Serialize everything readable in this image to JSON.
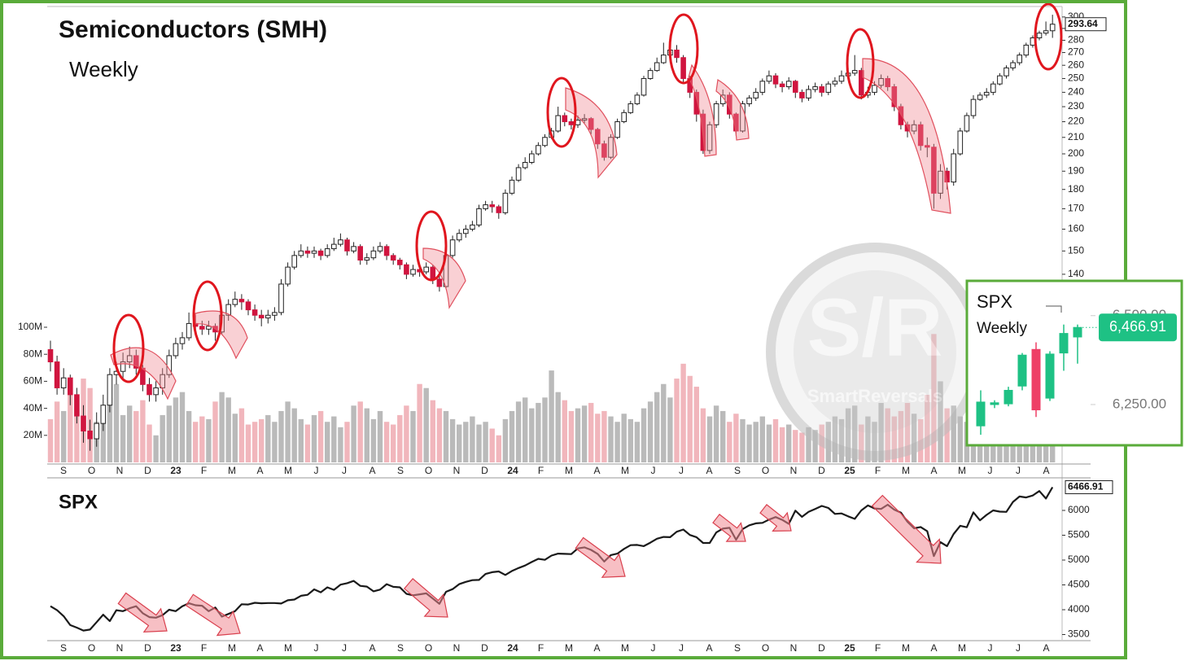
{
  "chart_data": [
    {
      "type": "candlestick",
      "title": "Semiconductors (SMH)",
      "subtitle": "Weekly",
      "log": true,
      "up_color": "#ffffff",
      "down_color": "#d0153f",
      "outline_color": "#222222",
      "ylim": [
        80,
        305
      ],
      "yticks": [
        140,
        150,
        160,
        170,
        180,
        190,
        200,
        210,
        220,
        230,
        240,
        250,
        260,
        270,
        280,
        290,
        300
      ],
      "ohlc": [
        [
          112,
          115,
          105,
          108
        ],
        [
          108,
          110,
          98,
          100
        ],
        [
          100,
          106,
          98,
          103
        ],
        [
          103,
          104,
          95,
          98
        ],
        [
          98,
          100,
          90,
          92
        ],
        [
          92,
          95,
          85,
          88
        ],
        [
          88,
          91,
          83,
          86
        ],
        [
          86,
          93,
          84,
          90
        ],
        [
          90,
          98,
          88,
          95
        ],
        [
          95,
          106,
          93,
          104
        ],
        [
          104,
          108,
          101,
          105
        ],
        [
          105,
          111,
          103,
          108
        ],
        [
          108,
          113,
          106,
          110
        ],
        [
          110,
          112,
          104,
          106
        ],
        [
          106,
          107,
          99,
          101
        ],
        [
          101,
          103,
          96,
          98
        ],
        [
          98,
          102,
          96,
          100
        ],
        [
          100,
          106,
          98,
          104
        ],
        [
          104,
          112,
          103,
          110
        ],
        [
          110,
          116,
          109,
          114
        ],
        [
          114,
          118,
          112,
          116
        ],
        [
          116,
          125,
          115,
          121
        ],
        [
          121,
          124,
          118,
          120
        ],
        [
          120,
          122,
          117,
          119
        ],
        [
          119,
          122,
          117,
          120
        ],
        [
          120,
          121,
          115,
          118
        ],
        [
          118,
          126,
          117,
          124
        ],
        [
          124,
          130,
          122,
          128
        ],
        [
          128,
          133,
          127,
          130
        ],
        [
          130,
          132,
          126,
          129
        ],
        [
          129,
          130,
          124,
          126
        ],
        [
          126,
          128,
          122,
          124
        ],
        [
          124,
          126,
          120,
          123
        ],
        [
          123,
          126,
          121,
          124
        ],
        [
          124,
          127,
          122,
          125
        ],
        [
          125,
          138,
          124,
          136
        ],
        [
          136,
          145,
          135,
          143
        ],
        [
          143,
          150,
          142,
          148
        ],
        [
          148,
          153,
          147,
          150
        ],
        [
          150,
          152,
          147,
          149
        ],
        [
          149,
          152,
          147,
          150
        ],
        [
          150,
          151,
          146,
          148
        ],
        [
          148,
          153,
          147,
          151
        ],
        [
          151,
          156,
          150,
          153
        ],
        [
          153,
          158,
          152,
          155
        ],
        [
          155,
          156,
          148,
          150
        ],
        [
          150,
          154,
          149,
          152
        ],
        [
          152,
          153,
          144,
          146
        ],
        [
          146,
          149,
          144,
          147
        ],
        [
          147,
          152,
          146,
          150
        ],
        [
          150,
          154,
          149,
          152
        ],
        [
          152,
          153,
          146,
          148
        ],
        [
          148,
          149,
          144,
          146
        ],
        [
          146,
          147,
          142,
          144
        ],
        [
          144,
          145,
          138,
          140
        ],
        [
          140,
          144,
          139,
          142
        ],
        [
          142,
          144,
          139,
          141
        ],
        [
          141,
          145,
          140,
          143
        ],
        [
          143,
          144,
          136,
          138
        ],
        [
          138,
          140,
          133,
          135
        ],
        [
          135,
          149,
          134,
          148
        ],
        [
          148,
          157,
          147,
          155
        ],
        [
          155,
          160,
          154,
          158
        ],
        [
          158,
          162,
          156,
          160
        ],
        [
          160,
          164,
          159,
          162
        ],
        [
          162,
          172,
          161,
          170
        ],
        [
          170,
          174,
          169,
          172
        ],
        [
          172,
          174,
          168,
          171
        ],
        [
          171,
          172,
          165,
          168
        ],
        [
          168,
          180,
          167,
          178
        ],
        [
          178,
          187,
          177,
          185
        ],
        [
          185,
          194,
          184,
          192
        ],
        [
          192,
          198,
          191,
          195
        ],
        [
          195,
          202,
          194,
          200
        ],
        [
          200,
          207,
          199,
          205
        ],
        [
          205,
          212,
          204,
          210
        ],
        [
          210,
          216,
          209,
          214
        ],
        [
          214,
          230,
          213,
          224
        ],
        [
          224,
          226,
          217,
          220
        ],
        [
          220,
          222,
          215,
          218
        ],
        [
          218,
          224,
          216,
          221
        ],
        [
          221,
          225,
          219,
          222
        ],
        [
          222,
          223,
          212,
          215
        ],
        [
          215,
          216,
          203,
          206
        ],
        [
          206,
          208,
          196,
          198
        ],
        [
          198,
          212,
          197,
          210
        ],
        [
          210,
          222,
          209,
          220
        ],
        [
          220,
          228,
          219,
          226
        ],
        [
          226,
          234,
          225,
          232
        ],
        [
          232,
          240,
          231,
          238
        ],
        [
          238,
          252,
          237,
          250
        ],
        [
          250,
          258,
          249,
          256
        ],
        [
          256,
          266,
          255,
          262
        ],
        [
          262,
          278,
          261,
          268
        ],
        [
          268,
          280,
          266,
          272
        ],
        [
          272,
          276,
          262,
          266
        ],
        [
          266,
          268,
          246,
          250
        ],
        [
          250,
          252,
          236,
          240
        ],
        [
          240,
          242,
          220,
          225
        ],
        [
          225,
          228,
          200,
          202
        ],
        [
          202,
          220,
          200,
          218
        ],
        [
          218,
          234,
          216,
          232
        ],
        [
          232,
          242,
          230,
          238
        ],
        [
          238,
          240,
          222,
          225
        ],
        [
          225,
          226,
          211,
          214
        ],
        [
          214,
          234,
          213,
          232
        ],
        [
          232,
          238,
          230,
          236
        ],
        [
          236,
          243,
          234,
          240
        ],
        [
          240,
          250,
          238,
          248
        ],
        [
          248,
          256,
          246,
          252
        ],
        [
          252,
          254,
          243,
          246
        ],
        [
          246,
          248,
          240,
          244
        ],
        [
          244,
          251,
          242,
          248
        ],
        [
          248,
          249,
          236,
          240
        ],
        [
          240,
          242,
          233,
          236
        ],
        [
          236,
          245,
          234,
          242
        ],
        [
          242,
          247,
          240,
          244
        ],
        [
          244,
          246,
          237,
          240
        ],
        [
          240,
          248,
          238,
          246
        ],
        [
          246,
          251,
          244,
          248
        ],
        [
          248,
          256,
          246,
          252
        ],
        [
          252,
          258,
          250,
          254
        ],
        [
          254,
          268,
          252,
          256
        ],
        [
          256,
          258,
          235,
          238
        ],
        [
          238,
          244,
          236,
          240
        ],
        [
          240,
          248,
          238,
          245
        ],
        [
          245,
          253,
          243,
          250
        ],
        [
          250,
          252,
          241,
          244
        ],
        [
          244,
          246,
          227,
          230
        ],
        [
          230,
          232,
          215,
          218
        ],
        [
          218,
          220,
          210,
          214
        ],
        [
          214,
          221,
          212,
          218
        ],
        [
          218,
          220,
          202,
          205
        ],
        [
          205,
          210,
          198,
          204
        ],
        [
          204,
          206,
          170,
          178
        ],
        [
          178,
          194,
          175,
          190
        ],
        [
          190,
          192,
          180,
          184
        ],
        [
          184,
          203,
          182,
          200
        ],
        [
          200,
          216,
          199,
          214
        ],
        [
          214,
          226,
          213,
          224
        ],
        [
          224,
          238,
          222,
          235
        ],
        [
          235,
          240,
          234,
          238
        ],
        [
          238,
          243,
          236,
          240
        ],
        [
          240,
          248,
          238,
          246
        ],
        [
          246,
          254,
          245,
          252
        ],
        [
          252,
          260,
          250,
          258
        ],
        [
          258,
          264,
          256,
          262
        ],
        [
          262,
          270,
          260,
          268
        ],
        [
          268,
          278,
          266,
          276
        ],
        [
          276,
          284,
          274,
          282
        ],
        [
          282,
          288,
          280,
          286
        ],
        [
          286,
          296,
          284,
          288
        ],
        [
          288,
          302,
          282,
          293.64
        ]
      ]
    },
    {
      "type": "bar",
      "up_color": "#b3b3b3",
      "down_color": "#f0aeb5",
      "ylim": [
        0,
        100
      ],
      "yticks": [
        {
          "value": 20,
          "label": "20M"
        },
        {
          "value": 40,
          "label": "40M"
        },
        {
          "value": 60,
          "label": "60M"
        },
        {
          "value": 80,
          "label": "80M"
        },
        {
          "value": 100,
          "label": "100M"
        }
      ],
      "values": [
        32,
        45,
        38,
        50,
        40,
        62,
        55,
        30,
        42,
        48,
        58,
        35,
        42,
        38,
        46,
        28,
        20,
        35,
        42,
        48,
        52,
        38,
        30,
        34,
        32,
        45,
        52,
        48,
        36,
        40,
        28,
        30,
        32,
        35,
        30,
        38,
        45,
        40,
        32,
        28,
        35,
        38,
        30,
        34,
        26,
        30,
        42,
        45,
        40,
        32,
        38,
        30,
        28,
        35,
        42,
        38,
        58,
        55,
        46,
        40,
        38,
        32,
        28,
        30,
        34,
        28,
        30,
        25,
        20,
        32,
        38,
        45,
        48,
        40,
        44,
        48,
        68,
        52,
        46,
        38,
        40,
        42,
        44,
        36,
        38,
        34,
        30,
        36,
        32,
        30,
        40,
        45,
        52,
        58,
        48,
        62,
        73,
        64,
        56,
        40,
        34,
        42,
        38,
        30,
        36,
        32,
        28,
        30,
        34,
        28,
        32,
        26,
        28,
        24,
        22,
        26,
        24,
        28,
        30,
        34,
        32,
        40,
        42,
        28,
        34,
        30,
        44,
        40,
        34,
        38,
        44,
        36,
        32,
        50,
        95,
        60,
        40,
        42,
        34,
        30,
        28,
        32,
        30,
        26,
        28,
        30,
        24,
        26,
        22,
        28,
        30,
        24,
        28
      ]
    },
    {
      "type": "line",
      "title": "SPX",
      "color": "#1a1a1a",
      "ylim": [
        3400,
        6600
      ],
      "yticks": [
        3500,
        4000,
        4500,
        5000,
        5500,
        6000
      ],
      "values": [
        4070,
        3990,
        3870,
        3690,
        3640,
        3580,
        3600,
        3750,
        3900,
        3770,
        3990,
        3970,
        4030,
        4070,
        3930,
        3850,
        3840,
        3890,
        4000,
        3970,
        4070,
        4130,
        4090,
        4080,
        3970,
        4045,
        3860,
        3915,
        3970,
        4110,
        4105,
        4140,
        4130,
        4135,
        4135,
        4125,
        4190,
        4205,
        4280,
        4300,
        4410,
        4350,
        4450,
        4400,
        4505,
        4535,
        4580,
        4480,
        4465,
        4370,
        4405,
        4515,
        4460,
        4450,
        4320,
        4290,
        4310,
        4330,
        4225,
        4120,
        4360,
        4415,
        4515,
        4560,
        4595,
        4600,
        4720,
        4755,
        4770,
        4700,
        4780,
        4840,
        4890,
        4960,
        5025,
        5005,
        5090,
        5130,
        5125,
        5120,
        5235,
        5255,
        5205,
        5125,
        4970,
        5100,
        5130,
        5225,
        5300,
        5305,
        5280,
        5350,
        5430,
        5465,
        5460,
        5570,
        5615,
        5505,
        5460,
        5345,
        5345,
        5555,
        5635,
        5650,
        5410,
        5625,
        5700,
        5740,
        5750,
        5815,
        5865,
        5810,
        5730,
        5995,
        5870,
        5970,
        6030,
        6090,
        6050,
        5930,
        5940,
        5880,
        5830,
        6000,
        6100,
        6040,
        6030,
        6115,
        6015,
        5955,
        5770,
        5640,
        5665,
        5580,
        5080,
        5360,
        5280,
        5525,
        5690,
        5660,
        5960,
        5800,
        5910,
        6000,
        5975,
        5970,
        6170,
        6280,
        6260,
        6300,
        6390,
        6240,
        6466.91
      ]
    },
    {
      "type": "candlestick",
      "title": "SPX",
      "subtitle": "Weekly",
      "log": false,
      "up_color": "#1ec184",
      "down_color": "#ee3f66",
      "outline_color": "#1ec184",
      "tag_color": "#1ec184",
      "ylim": [
        6140,
        6575
      ],
      "yticks": [
        {
          "value": 6250,
          "label": "6,250.00"
        },
        {
          "value": 6500,
          "label": "6,500.00"
        }
      ],
      "last_close_label": "6,466.91",
      "ohlc": [
        [
          6190,
          6290,
          6165,
          6257
        ],
        [
          6250,
          6262,
          6240,
          6255
        ],
        [
          6252,
          6300,
          6245,
          6290
        ],
        [
          6302,
          6395,
          6290,
          6389
        ],
        [
          6405,
          6425,
          6215,
          6235
        ],
        [
          6268,
          6400,
          6260,
          6392
        ],
        [
          6395,
          6475,
          6345,
          6450
        ],
        [
          6440,
          6475,
          6365,
          6466.91
        ]
      ]
    }
  ],
  "x_axis_labels": [
    "S",
    "O",
    "N",
    "D",
    "23",
    "F",
    "M",
    "A",
    "M",
    "J",
    "J",
    "A",
    "S",
    "O",
    "N",
    "D",
    "24",
    "F",
    "M",
    "A",
    "M",
    "J",
    "J",
    "A",
    "S",
    "O",
    "N",
    "D",
    "25",
    "F",
    "M",
    "A",
    "M",
    "J",
    "J",
    "A"
  ],
  "watermark": {
    "logo": "S/R",
    "name": "SmartReversals"
  }
}
